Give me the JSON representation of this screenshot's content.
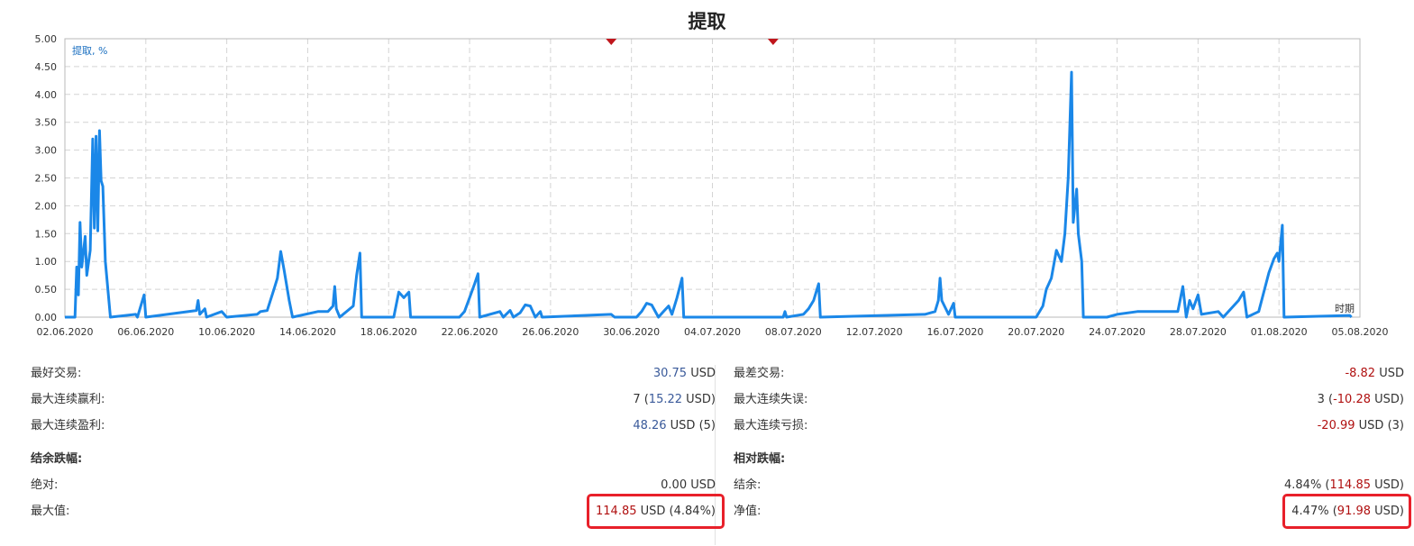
{
  "chart_data": {
    "type": "line",
    "title": "提取",
    "ylabel": "提取, %",
    "xlabel": "时期",
    "ylim": [
      0,
      5
    ],
    "yticks": [
      "0.00",
      "0.50",
      "1.00",
      "1.50",
      "2.00",
      "2.50",
      "3.00",
      "3.50",
      "4.00",
      "4.50",
      "5.00"
    ],
    "xlim": [
      "02.06.2020",
      "05.08.2020"
    ],
    "xticks": [
      "02.06.2020",
      "06.06.2020",
      "10.06.2020",
      "14.06.2020",
      "18.06.2020",
      "22.06.2020",
      "26.06.2020",
      "30.06.2020",
      "04.07.2020",
      "08.07.2020",
      "12.07.2020",
      "16.07.2020",
      "20.07.2020",
      "24.07.2020",
      "28.07.2020",
      "01.08.2020",
      "05.08.2020"
    ],
    "grid": true,
    "line_color": "#1a87e8",
    "marker_color": "#c0161c",
    "markers": [
      {
        "x": "29.06.2020"
      },
      {
        "x": "07.07.2020"
      }
    ],
    "series": [
      {
        "name": "",
        "points": [
          [
            "02.06.2020 00:00",
            0
          ],
          [
            "02.06.2020 12:00",
            0
          ],
          [
            "02.06.2020 14:00",
            0.9
          ],
          [
            "02.06.2020 16:00",
            0.4
          ],
          [
            "02.06.2020 18:00",
            1.7
          ],
          [
            "02.06.2020 20:00",
            0.9
          ],
          [
            "03.06.2020 00:00",
            1.45
          ],
          [
            "03.06.2020 02:00",
            0.75
          ],
          [
            "03.06.2020 06:00",
            1.2
          ],
          [
            "03.06.2020 09:00",
            3.2
          ],
          [
            "03.06.2020 11:00",
            1.6
          ],
          [
            "03.06.2020 13:00",
            3.25
          ],
          [
            "03.06.2020 15:00",
            1.55
          ],
          [
            "03.06.2020 17:00",
            3.35
          ],
          [
            "03.06.2020 19:00",
            2.45
          ],
          [
            "03.06.2020 21:00",
            2.35
          ],
          [
            "04.06.2020 00:00",
            1.0
          ],
          [
            "04.06.2020 06:00",
            0
          ],
          [
            "05.06.2020 12:00",
            0.05
          ],
          [
            "05.06.2020 14:00",
            0
          ],
          [
            "05.06.2020 22:00",
            0.4
          ],
          [
            "06.06.2020 00:00",
            0
          ],
          [
            "08.06.2020 12:00",
            0.12
          ],
          [
            "08.06.2020 14:00",
            0.3
          ],
          [
            "08.06.2020 16:00",
            0.05
          ],
          [
            "08.06.2020 22:00",
            0.15
          ],
          [
            "09.06.2020 00:00",
            0
          ],
          [
            "09.06.2020 18:00",
            0.1
          ],
          [
            "10.06.2020 00:00",
            0
          ],
          [
            "11.06.2020 12:00",
            0.05
          ],
          [
            "11.06.2020 16:00",
            0.1
          ],
          [
            "12.06.2020 00:00",
            0.12
          ],
          [
            "12.06.2020 08:00",
            0.5
          ],
          [
            "12.06.2020 12:00",
            0.7
          ],
          [
            "12.06.2020 16:00",
            1.18
          ],
          [
            "12.06.2020 20:00",
            0.85
          ],
          [
            "13.06.2020 02:00",
            0.3
          ],
          [
            "13.06.2020 06:00",
            0
          ],
          [
            "14.06.2020 12:00",
            0.1
          ],
          [
            "15.06.2020 00:00",
            0.1
          ],
          [
            "15.06.2020 06:00",
            0.2
          ],
          [
            "15.06.2020 08:00",
            0.55
          ],
          [
            "15.06.2020 10:00",
            0.15
          ],
          [
            "15.06.2020 14:00",
            0
          ],
          [
            "16.06.2020 06:00",
            0.2
          ],
          [
            "16.06.2020 10:00",
            0.75
          ],
          [
            "16.06.2020 14:00",
            1.15
          ],
          [
            "16.06.2020 16:00",
            0
          ],
          [
            "18.06.2020 06:00",
            0
          ],
          [
            "18.06.2020 12:00",
            0.45
          ],
          [
            "18.06.2020 18:00",
            0.35
          ],
          [
            "19.06.2020 00:00",
            0.45
          ],
          [
            "19.06.2020 02:00",
            0
          ],
          [
            "21.06.2020 12:00",
            0
          ],
          [
            "21.06.2020 18:00",
            0.1
          ],
          [
            "22.06.2020 00:00",
            0.35
          ],
          [
            "22.06.2020 06:00",
            0.6
          ],
          [
            "22.06.2020 10:00",
            0.78
          ],
          [
            "22.06.2020 12:00",
            0
          ],
          [
            "23.06.2020 12:00",
            0.1
          ],
          [
            "23.06.2020 16:00",
            0
          ],
          [
            "24.06.2020 00:00",
            0.12
          ],
          [
            "24.06.2020 04:00",
            0
          ],
          [
            "24.06.2020 12:00",
            0.08
          ],
          [
            "24.06.2020 18:00",
            0.22
          ],
          [
            "25.06.2020 00:00",
            0.2
          ],
          [
            "25.06.2020 06:00",
            0
          ],
          [
            "25.06.2020 12:00",
            0.1
          ],
          [
            "25.06.2020 14:00",
            0
          ],
          [
            "29.06.2020 00:00",
            0.05
          ],
          [
            "29.06.2020 04:00",
            0
          ],
          [
            "30.06.2020 06:00",
            0
          ],
          [
            "30.06.2020 12:00",
            0.1
          ],
          [
            "30.06.2020 18:00",
            0.25
          ],
          [
            "01.07.2020 00:00",
            0.22
          ],
          [
            "01.07.2020 08:00",
            0
          ],
          [
            "01.07.2020 14:00",
            0.1
          ],
          [
            "01.07.2020 20:00",
            0.2
          ],
          [
            "02.07.2020 00:00",
            0.05
          ],
          [
            "02.07.2020 06:00",
            0.35
          ],
          [
            "02.07.2020 12:00",
            0.7
          ],
          [
            "02.07.2020 14:00",
            0
          ],
          [
            "07.07.2020 12:00",
            0
          ],
          [
            "07.07.2020 14:00",
            0.1
          ],
          [
            "07.07.2020 16:00",
            0
          ],
          [
            "08.07.2020 12:00",
            0.05
          ],
          [
            "08.07.2020 18:00",
            0.15
          ],
          [
            "09.07.2020 00:00",
            0.3
          ],
          [
            "09.07.2020 06:00",
            0.6
          ],
          [
            "09.07.2020 08:00",
            0
          ],
          [
            "14.07.2020 12:00",
            0.05
          ],
          [
            "15.07.2020 00:00",
            0.1
          ],
          [
            "15.07.2020 04:00",
            0.3
          ],
          [
            "15.07.2020 06:00",
            0.7
          ],
          [
            "15.07.2020 08:00",
            0.3
          ],
          [
            "15.07.2020 16:00",
            0.05
          ],
          [
            "15.07.2020 22:00",
            0.25
          ],
          [
            "16.07.2020 00:00",
            0
          ],
          [
            "17.07.2020 00:00",
            0
          ],
          [
            "20.07.2020 00:00",
            0
          ],
          [
            "20.07.2020 08:00",
            0.2
          ],
          [
            "20.07.2020 12:00",
            0.5
          ],
          [
            "20.07.2020 18:00",
            0.7
          ],
          [
            "21.07.2020 00:00",
            1.2
          ],
          [
            "21.07.2020 06:00",
            1.0
          ],
          [
            "21.07.2020 10:00",
            1.5
          ],
          [
            "21.07.2020 14:00",
            2.5
          ],
          [
            "21.07.2020 18:00",
            4.4
          ],
          [
            "21.07.2020 20:00",
            1.7
          ],
          [
            "22.07.2020 00:00",
            2.3
          ],
          [
            "22.07.2020 02:00",
            1.5
          ],
          [
            "22.07.2020 06:00",
            1.0
          ],
          [
            "22.07.2020 08:00",
            0
          ],
          [
            "23.07.2020 12:00",
            0
          ],
          [
            "24.07.2020 00:00",
            0.05
          ],
          [
            "25.07.2020 00:00",
            0.1
          ],
          [
            "27.07.2020 00:00",
            0.1
          ],
          [
            "27.07.2020 06:00",
            0.55
          ],
          [
            "27.07.2020 10:00",
            0
          ],
          [
            "27.07.2020 14:00",
            0.3
          ],
          [
            "27.07.2020 18:00",
            0.15
          ],
          [
            "28.07.2020 00:00",
            0.4
          ],
          [
            "28.07.2020 04:00",
            0.05
          ],
          [
            "29.07.2020 00:00",
            0.1
          ],
          [
            "29.07.2020 06:00",
            0
          ],
          [
            "30.07.2020 00:00",
            0.3
          ],
          [
            "30.07.2020 06:00",
            0.45
          ],
          [
            "30.07.2020 10:00",
            0
          ],
          [
            "31.07.2020 00:00",
            0.1
          ],
          [
            "31.07.2020 12:00",
            0.8
          ],
          [
            "31.07.2020 18:00",
            1.05
          ],
          [
            "31.07.2020 22:00",
            1.15
          ],
          [
            "01.08.2020 00:00",
            1.0
          ],
          [
            "01.08.2020 04:00",
            1.65
          ],
          [
            "01.08.2020 06:00",
            0
          ],
          [
            "04.08.2020 12:00",
            0.03
          ],
          [
            "04.08.2020 14:00",
            0
          ]
        ]
      }
    ]
  },
  "stats": {
    "left": [
      {
        "label": "最好交易:",
        "value": [
          {
            "t": "30.75",
            "c": "pos"
          },
          {
            "t": " USD",
            "c": "plain"
          }
        ]
      },
      {
        "label": "最大连续赢利:",
        "value": [
          {
            "t": "7 (",
            "c": "plain"
          },
          {
            "t": "15.22",
            "c": "pos"
          },
          {
            "t": " USD)",
            "c": "plain"
          }
        ]
      },
      {
        "label": "最大连续盈利:",
        "value": [
          {
            "t": "48.26",
            "c": "pos"
          },
          {
            "t": " USD (5)",
            "c": "plain"
          }
        ]
      },
      {
        "label": "结余跌幅:",
        "section": true,
        "value": []
      },
      {
        "label": "绝对:",
        "value": [
          {
            "t": "0.00 USD",
            "c": "plain"
          }
        ]
      },
      {
        "label": "最大值:",
        "highlight": true,
        "value": [
          {
            "t": "114.85",
            "c": "neg"
          },
          {
            "t": " USD (4.84%)",
            "c": "plain"
          }
        ]
      }
    ],
    "right": [
      {
        "label": "最差交易:",
        "value": [
          {
            "t": "-8.82",
            "c": "neg"
          },
          {
            "t": " USD",
            "c": "plain"
          }
        ]
      },
      {
        "label": "最大连续失误:",
        "value": [
          {
            "t": "3 (",
            "c": "plain"
          },
          {
            "t": "-10.28",
            "c": "neg"
          },
          {
            "t": " USD)",
            "c": "plain"
          }
        ]
      },
      {
        "label": "最大连续亏损:",
        "value": [
          {
            "t": "-20.99",
            "c": "neg"
          },
          {
            "t": " USD (3)",
            "c": "plain"
          }
        ]
      },
      {
        "label": "相对跌幅:",
        "section": true,
        "value": []
      },
      {
        "label": "结余:",
        "value": [
          {
            "t": "4.84% (",
            "c": "plain"
          },
          {
            "t": "114.85",
            "c": "neg"
          },
          {
            "t": " USD)",
            "c": "plain"
          }
        ]
      },
      {
        "label": "净值:",
        "highlight": true,
        "value": [
          {
            "t": "4.47% (",
            "c": "plain"
          },
          {
            "t": "91.98",
            "c": "neg"
          },
          {
            "t": " USD)",
            "c": "plain"
          }
        ]
      }
    ]
  }
}
